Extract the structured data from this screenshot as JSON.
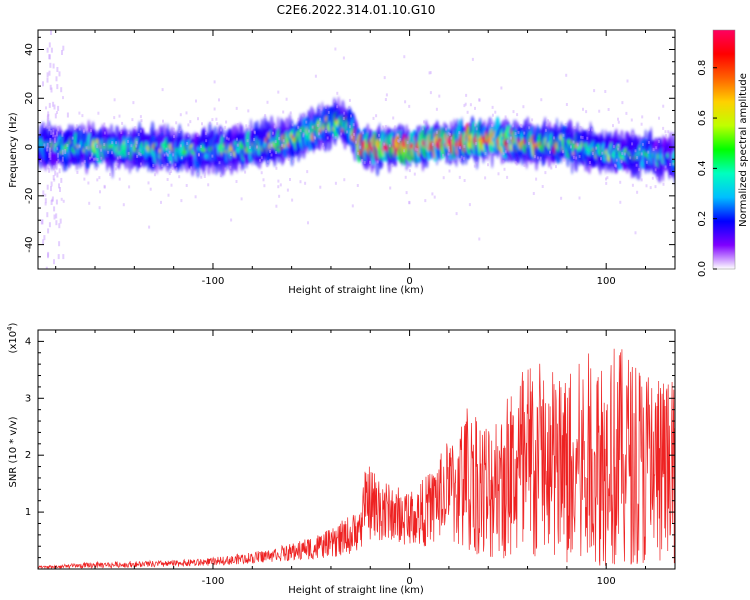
{
  "title": "C2E6.2022.314.01.10.G10",
  "chart_data": [
    {
      "type": "heatmap",
      "name": "spectrogram",
      "xlabel": "Height of straight line (km)",
      "ylabel": "Frequency (Hz)",
      "xlim": [
        -189,
        135
      ],
      "ylim": [
        -50,
        48
      ],
      "xticks": [
        -100,
        0,
        100
      ],
      "xtick_labels": [
        "-100",
        "0",
        "100"
      ],
      "yticks": [
        -40,
        -20,
        0,
        20,
        40
      ],
      "ytick_labels": [
        "-40",
        "-20",
        "0",
        "20",
        "40"
      ],
      "description_of_signal": "Band centred near 0 Hz across heights; feature rising to ~+15 Hz between -60 and -30 km; strongest (red) values between -20 and +40 km near 0 Hz; faint vertical streak near -180 km",
      "ridge": {
        "x": [
          -189,
          -150,
          -110,
          -80,
          -60,
          -45,
          -35,
          -30,
          -25,
          -10,
          0,
          20,
          40,
          60,
          80,
          100,
          120,
          135
        ],
        "center_hz": [
          0,
          0,
          -2,
          0,
          3,
          8,
          10,
          8,
          0,
          0,
          0,
          2,
          3,
          2,
          1,
          -2,
          -3,
          -5
        ],
        "amplitude": [
          0.35,
          0.4,
          0.35,
          0.4,
          0.45,
          0.5,
          0.45,
          0.5,
          0.85,
          0.9,
          0.9,
          0.8,
          0.7,
          0.55,
          0.45,
          0.35,
          0.3,
          0.3
        ]
      },
      "colorbar": {
        "label": "Normalized spectral amplitude",
        "range": [
          0,
          0.95
        ],
        "ticks": [
          0.0,
          0.2,
          0.4,
          0.6,
          0.8
        ],
        "tick_labels": [
          "0.0",
          "0.2",
          "0.4",
          "0.6",
          "0.8"
        ],
        "colors": [
          "#ffffff",
          "#7f00ff",
          "#0000ff",
          "#00bfff",
          "#00ffbf",
          "#00ff00",
          "#bfff00",
          "#ffd000",
          "#ff6000",
          "#ff0000",
          "#ff0060"
        ]
      }
    },
    {
      "type": "line",
      "name": "snr",
      "xlabel": "Height of straight line (km)",
      "ylabel": "SNR (10 * v/v)",
      "y_multiplier_label": "(x10",
      "y_multiplier_exp": "4",
      "xlim": [
        -189,
        135
      ],
      "ylim": [
        0,
        4.2
      ],
      "xticks": [
        -100,
        0,
        100
      ],
      "xtick_labels": [
        "-100",
        "0",
        "100"
      ],
      "yticks": [
        1,
        2,
        3,
        4
      ],
      "ytick_labels": [
        "1",
        "2",
        "3",
        "4"
      ],
      "color": "#ee2222",
      "envelope": {
        "x": [
          -189,
          -160,
          -120,
          -100,
          -80,
          -60,
          -40,
          -25,
          -22,
          -10,
          0,
          10,
          20,
          30,
          40,
          60,
          80,
          100,
          120,
          135
        ],
        "upper": [
          0.05,
          0.12,
          0.15,
          0.2,
          0.3,
          0.45,
          0.7,
          1.1,
          1.9,
          1.5,
          1.4,
          1.7,
          2.3,
          3.0,
          2.6,
          3.8,
          3.5,
          4.1,
          3.6,
          3.3
        ],
        "lower": [
          0.0,
          0.02,
          0.04,
          0.06,
          0.1,
          0.15,
          0.2,
          0.3,
          0.5,
          0.5,
          0.4,
          0.4,
          0.5,
          0.3,
          0.2,
          0.15,
          0.1,
          0.05,
          0.1,
          0.1
        ]
      }
    }
  ]
}
